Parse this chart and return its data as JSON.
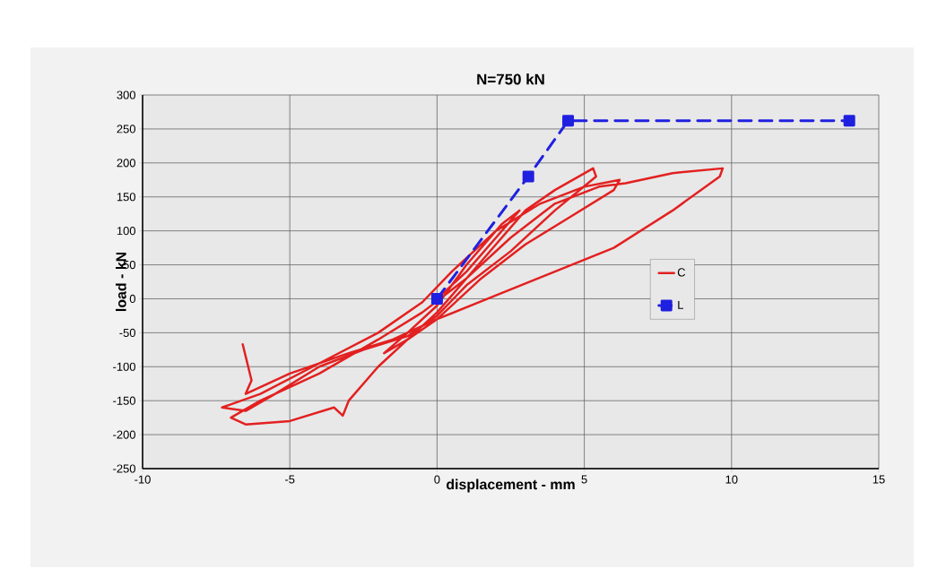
{
  "chart_data": {
    "type": "line",
    "title": "N=750 kN",
    "xlabel": "displacement - mm",
    "ylabel": "load - kN",
    "xlim": [
      -10,
      15
    ],
    "ylim": [
      -250,
      300
    ],
    "xticks": [
      -10,
      -5,
      0,
      5,
      10,
      15
    ],
    "yticks": [
      -250,
      -200,
      -150,
      -100,
      -50,
      0,
      50,
      100,
      150,
      200,
      250,
      300
    ],
    "grid": true,
    "legend": "right",
    "series": [
      {
        "name": "C",
        "color": "#e32020",
        "marker": "none",
        "line_style": "solid",
        "x": [
          0,
          1,
          2,
          2.8,
          2.2,
          1,
          0,
          -1,
          -1.8,
          -1,
          0,
          1,
          2,
          3,
          4,
          5.3,
          5.4,
          4,
          2.5,
          1,
          0,
          -1,
          -2.5,
          -4,
          -5.5,
          -6.5,
          -7.3,
          -6,
          -4,
          -2,
          -0.5,
          0.5,
          2,
          3.5,
          5,
          6.2,
          6,
          4.5,
          3,
          1.5,
          0,
          -1,
          -2,
          -3,
          -3.2,
          -3.5,
          -5,
          -6.5,
          -7,
          -6,
          -4,
          -2,
          -0.5,
          1,
          2.5,
          4,
          5.5,
          6.4,
          8,
          9.7,
          9.6,
          8,
          6,
          4,
          2,
          0,
          -1.5,
          -3,
          -5,
          -6.5,
          -6.3,
          -6.6
        ],
        "values": [
          0,
          40,
          90,
          130,
          110,
          50,
          -10,
          -50,
          -80,
          -60,
          -20,
          30,
          80,
          130,
          160,
          192,
          180,
          130,
          70,
          20,
          -25,
          -55,
          -75,
          -100,
          -140,
          -165,
          -160,
          -140,
          -95,
          -50,
          -5,
          40,
          100,
          140,
          165,
          175,
          160,
          120,
          80,
          30,
          -30,
          -60,
          -100,
          -150,
          -172,
          -160,
          -180,
          -185,
          -175,
          -150,
          -110,
          -60,
          -20,
          30,
          90,
          140,
          165,
          170,
          185,
          192,
          180,
          130,
          75,
          40,
          5,
          -30,
          -60,
          -80,
          -110,
          -140,
          -120,
          -67
        ]
      },
      {
        "name": "L",
        "color": "#2020e0",
        "marker": "square",
        "line_style": "dashed",
        "x": [
          0,
          3.1,
          4.45,
          14
        ],
        "values": [
          0,
          180,
          262,
          262
        ]
      }
    ]
  }
}
